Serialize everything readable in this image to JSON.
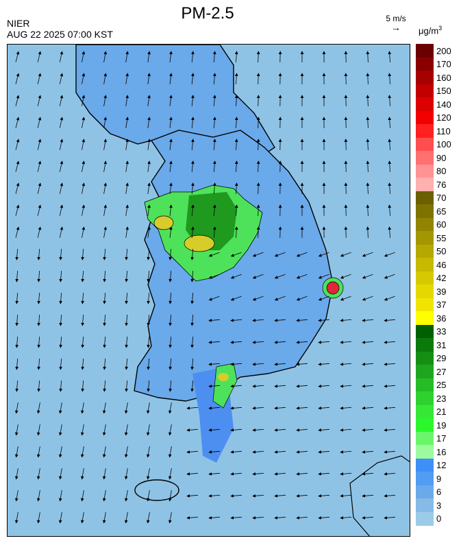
{
  "header": {
    "title": "PM-2.5",
    "agency": "NIER",
    "datetime": "AUG 22 2025 07:00 KST",
    "wind_ref_label": "5 m/s",
    "unit_main": "μg/m",
    "unit_sup": "3"
  },
  "colors": {
    "sea": "#8fc3e6",
    "land_low": "#6aa9ea",
    "land_mid": "#4d8ff0",
    "green_light": "#4ee25a",
    "green_dark": "#1f9a1f",
    "yellow": "#d7cc2a",
    "red": "#e0283a",
    "coast": "#000000"
  },
  "legend": {
    "labels": [
      "200",
      "170",
      "160",
      "150",
      "140",
      "120",
      "110",
      "100",
      "90",
      "80",
      "76",
      "70",
      "65",
      "60",
      "55",
      "50",
      "46",
      "42",
      "39",
      "37",
      "36",
      "33",
      "31",
      "29",
      "27",
      "25",
      "23",
      "21",
      "19",
      "17",
      "16",
      "12",
      "9",
      "6",
      "3",
      "0"
    ],
    "colors": [
      "#6b0000",
      "#8a0000",
      "#a60000",
      "#c20000",
      "#dc0000",
      "#f20000",
      "#ff2020",
      "#ff4e4e",
      "#ff7070",
      "#ff9292",
      "#ffb0b0",
      "#6b5f00",
      "#7e7200",
      "#928400",
      "#a49600",
      "#b5a800",
      "#c6b900",
      "#d6c900",
      "#e4d800",
      "#f0e400",
      "#ffff00",
      "#005f00",
      "#0a7a0a",
      "#148f14",
      "#1fa61f",
      "#26bc26",
      "#2ed22e",
      "#36e736",
      "#2cf72c",
      "#6bf56b",
      "#9dfb9d",
      "#3e8ff7",
      "#529cf2",
      "#6aaaea",
      "#85bbe6",
      "#9ccbe8"
    ]
  },
  "map": {
    "wind_field": "arrows",
    "hotspots": [
      {
        "name": "seoul",
        "level": "green"
      },
      {
        "name": "pohang",
        "level": "red"
      },
      {
        "name": "yeosu",
        "level": "yellow"
      }
    ]
  }
}
